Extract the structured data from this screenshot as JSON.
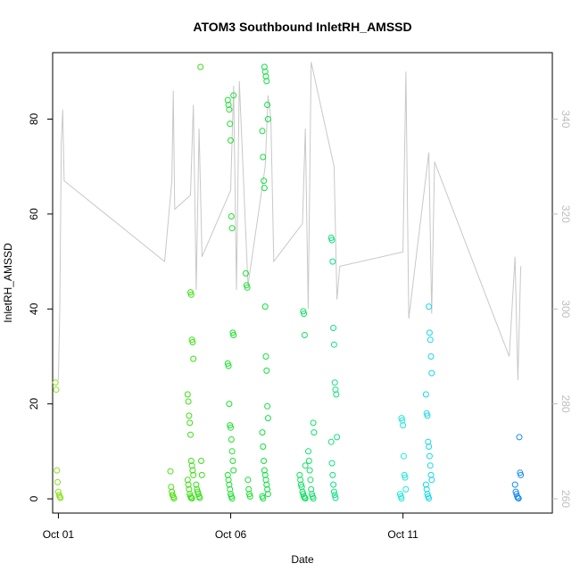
{
  "chart_data": {
    "type": "scatter",
    "title": "ATOM3 Southbound InletRH_AMSSD",
    "xlabel": "Date",
    "ylabel": "InletRH_AMSSD",
    "x_ticks": [
      "Oct 01",
      "Oct 06",
      "Oct 11"
    ],
    "xlim": [
      "2016-09-30T20:00",
      "2016-10-15T08:00"
    ],
    "ylim": [
      -3,
      94
    ],
    "y_ticks": [
      0,
      20,
      40,
      60,
      80
    ],
    "y2_ticks": [
      260,
      280,
      300,
      320,
      340
    ],
    "y2lim": [
      257,
      354
    ],
    "grid": false,
    "series": [
      {
        "role": "scatter",
        "color_note": "point color graded by date from yellow-green (Oct 01) through green and cyan to blue (Oct 14)",
        "groups": [
          {
            "x": "2016-10-01T00:00",
            "color": "#8de020",
            "values": [
              24.5,
              23,
              6,
              3.5,
              1.5,
              0.8,
              0.4,
              0.2
            ]
          },
          {
            "x": "2016-10-04T07:00",
            "color": "#4ce010",
            "values": [
              5.8,
              2.5,
              1.5,
              0.8,
              0.4,
              0.1
            ]
          },
          {
            "x": "2016-10-04T20:00",
            "color": "#3ce010",
            "values": [
              43.5,
              43,
              33.5,
              33,
              29.5,
              22,
              20.5,
              17.5,
              16,
              13.5,
              8,
              7,
              6,
              5,
              4,
              3,
              2,
              1,
              0.5,
              0.2,
              0.1
            ]
          },
          {
            "x": "2016-10-05T02:00",
            "color": "#38e018",
            "values": [
              91,
              8,
              5,
              3,
              2,
              1.5,
              1,
              0.5,
              0.2
            ]
          },
          {
            "x": "2016-10-06T00:00",
            "color": "#1ee030",
            "values": [
              85,
              84,
              83,
              82,
              79,
              75.5,
              59.5,
              57,
              35,
              34.5,
              28.5,
              28,
              20,
              15.5,
              15,
              12.5,
              10,
              8,
              6,
              5,
              4,
              3,
              2,
              1,
              0.5,
              0.1
            ]
          },
          {
            "x": "2016-10-06T12:00",
            "color": "#1ae030",
            "values": [
              47.5,
              45,
              44.5,
              4,
              2,
              1,
              0.5
            ]
          },
          {
            "x": "2016-10-07T00:00",
            "color": "#10e040",
            "values": [
              91,
              90,
              89,
              88,
              83,
              80,
              77.5,
              72,
              67,
              65.5,
              40.5,
              30,
              27,
              19.5,
              17,
              14,
              11,
              8,
              6,
              5,
              4,
              3,
              2,
              1,
              0.5,
              0.1
            ]
          },
          {
            "x": "2016-10-08T02:00",
            "color": "#10e060",
            "values": [
              39.5,
              39,
              34.5,
              7,
              5,
              4,
              3,
              2.5,
              1.5,
              1,
              0.5,
              0.2,
              0.1
            ]
          },
          {
            "x": "2016-10-08T08:00",
            "color": "#12e068",
            "values": [
              16,
              14,
              10,
              8,
              6,
              4,
              2,
              1,
              0.5,
              0.1
            ]
          },
          {
            "x": "2016-10-09T00:00",
            "color": "#10e080",
            "values": [
              55,
              54.5,
              50,
              36,
              32.5,
              24.5,
              23,
              22,
              13,
              12,
              7.5,
              5,
              3,
              1.5,
              0.8,
              0.2
            ]
          },
          {
            "x": "2016-10-11T00:00",
            "color": "#20e8d8",
            "values": [
              17,
              16.5,
              15.5,
              9,
              5,
              4.5,
              2,
              1,
              0.5,
              0.1
            ]
          },
          {
            "x": "2016-10-11T18:00",
            "color": "#18d8e8",
            "values": [
              40.5,
              35,
              33.5,
              30,
              26.5,
              22,
              18,
              17.5,
              12,
              11,
              9,
              7,
              5,
              4,
              3,
              2,
              1,
              0.5,
              0.1
            ]
          },
          {
            "x": "2016-10-14T08:00",
            "color": "#1a8cf0",
            "values": [
              13,
              5.5,
              5,
              3,
              1.5,
              1,
              0.5,
              0.2,
              0.1
            ]
          }
        ]
      },
      {
        "role": "line",
        "axis": "right",
        "color": "#c8c8c8",
        "note": "secondary line trace plotted on right axis (260-340 scale)",
        "points": [
          [
            "2016-10-01T00:00",
            285
          ],
          [
            "2016-10-01T01:00",
            300
          ],
          [
            "2016-10-01T02:00",
            335
          ],
          [
            "2016-10-01T03:00",
            342
          ],
          [
            "2016-10-01T04:00",
            327
          ],
          [
            "2016-10-04T02:00",
            310
          ],
          [
            "2016-10-04T07:00",
            327
          ],
          [
            "2016-10-04T08:00",
            346
          ],
          [
            "2016-10-04T09:00",
            321
          ],
          [
            "2016-10-04T20:00",
            324
          ],
          [
            "2016-10-04T22:00",
            343
          ],
          [
            "2016-10-05T00:00",
            304
          ],
          [
            "2016-10-05T02:00",
            338
          ],
          [
            "2016-10-05T04:00",
            311
          ],
          [
            "2016-10-06T00:00",
            325
          ],
          [
            "2016-10-06T02:00",
            347
          ],
          [
            "2016-10-06T04:00",
            304
          ],
          [
            "2016-10-06T06:00",
            348
          ],
          [
            "2016-10-06T12:00",
            305
          ],
          [
            "2016-10-07T00:00",
            330
          ],
          [
            "2016-10-07T02:00",
            345
          ],
          [
            "2016-10-07T04:00",
            340
          ],
          [
            "2016-10-07T06:00",
            310
          ],
          [
            "2016-10-08T02:00",
            318
          ],
          [
            "2016-10-08T04:00",
            338
          ],
          [
            "2016-10-08T06:00",
            300
          ],
          [
            "2016-10-08T08:00",
            352
          ],
          [
            "2016-10-09T00:00",
            330
          ],
          [
            "2016-10-09T02:00",
            302
          ],
          [
            "2016-10-09T04:00",
            309
          ],
          [
            "2016-10-11T00:00",
            312
          ],
          [
            "2016-10-11T02:00",
            350
          ],
          [
            "2016-10-11T04:00",
            298
          ],
          [
            "2016-10-11T18:00",
            333
          ],
          [
            "2016-10-11T20:00",
            299
          ],
          [
            "2016-10-11T22:00",
            331
          ],
          [
            "2016-10-14T02:00",
            290
          ],
          [
            "2016-10-14T06:00",
            311
          ],
          [
            "2016-10-14T08:00",
            285
          ],
          [
            "2016-10-14T10:00",
            309
          ]
        ]
      }
    ]
  }
}
